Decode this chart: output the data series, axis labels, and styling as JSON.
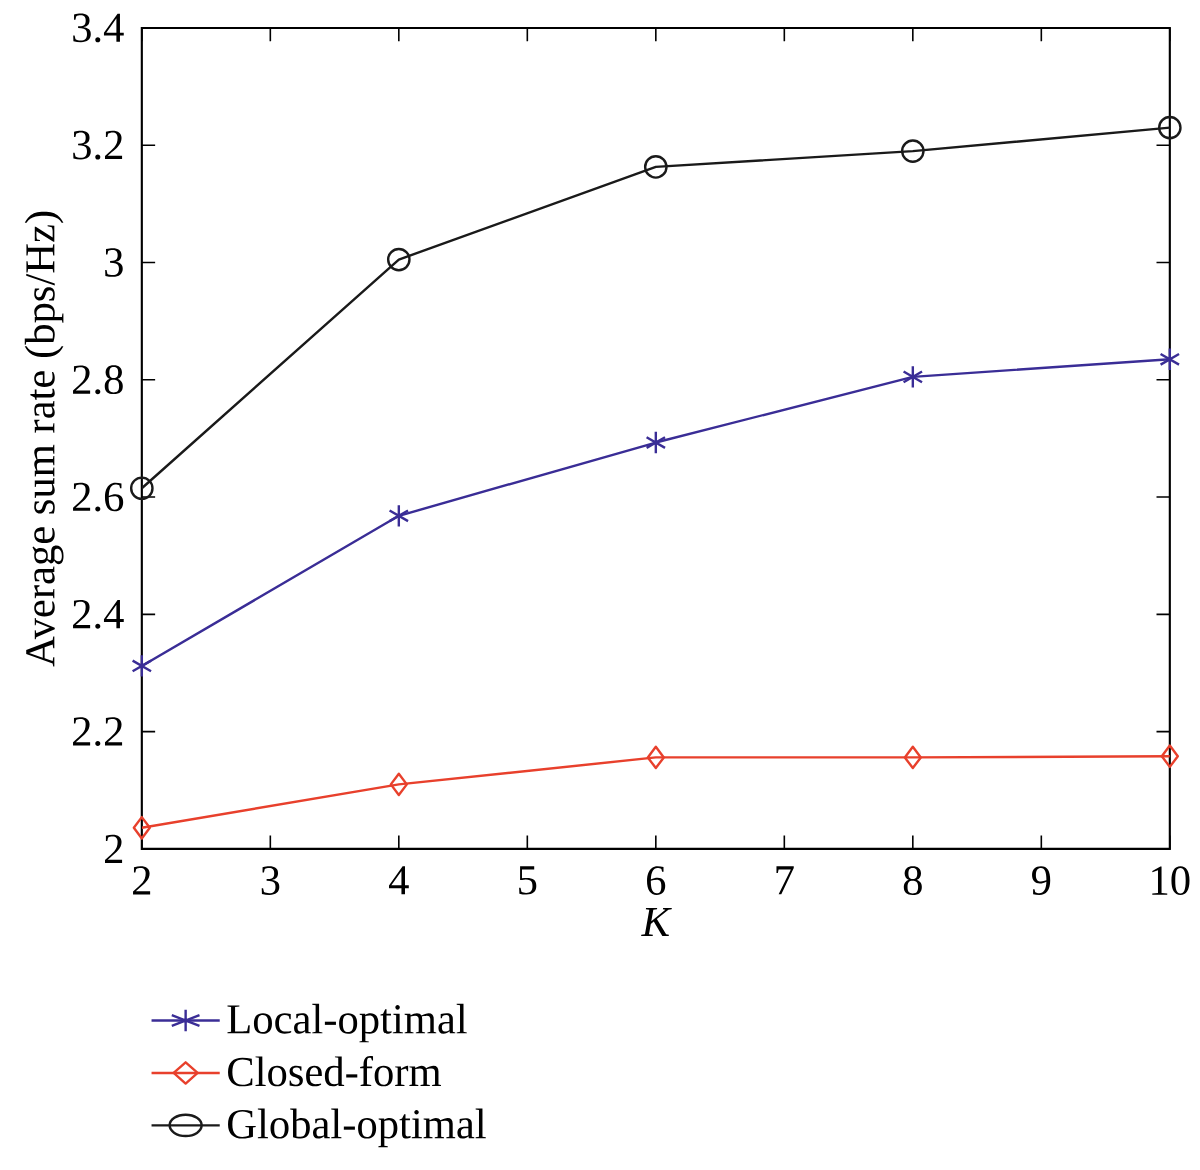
{
  "chart_data": {
    "type": "line",
    "xlabel": "K",
    "ylabel": "Average sum rate (bps/Hz)",
    "x": [
      2,
      4,
      6,
      8,
      10
    ],
    "series": [
      {
        "name": "Local-optimal",
        "color": "#3a2d96",
        "marker": "cross",
        "values": [
          2.312,
          2.568,
          2.693,
          2.805,
          2.835
        ]
      },
      {
        "name": "Closed-form",
        "color": "#e8402c",
        "marker": "diamond",
        "values": [
          2.036,
          2.11,
          2.156,
          2.156,
          2.158
        ]
      },
      {
        "name": "Global-optimal",
        "color": "#1a1a1a",
        "marker": "circle",
        "values": [
          2.615,
          3.005,
          3.163,
          3.19,
          3.23
        ]
      }
    ],
    "xlim": [
      2,
      10
    ],
    "xticks": [
      2,
      3,
      4,
      5,
      6,
      7,
      8,
      9,
      10
    ],
    "ylim": [
      2,
      3.4
    ],
    "yticks": [
      2,
      2.2,
      2.4,
      2.6,
      2.8,
      3,
      3.2,
      3.4
    ],
    "grid": false,
    "legend": "bottom left",
    "line_style": "solid"
  }
}
